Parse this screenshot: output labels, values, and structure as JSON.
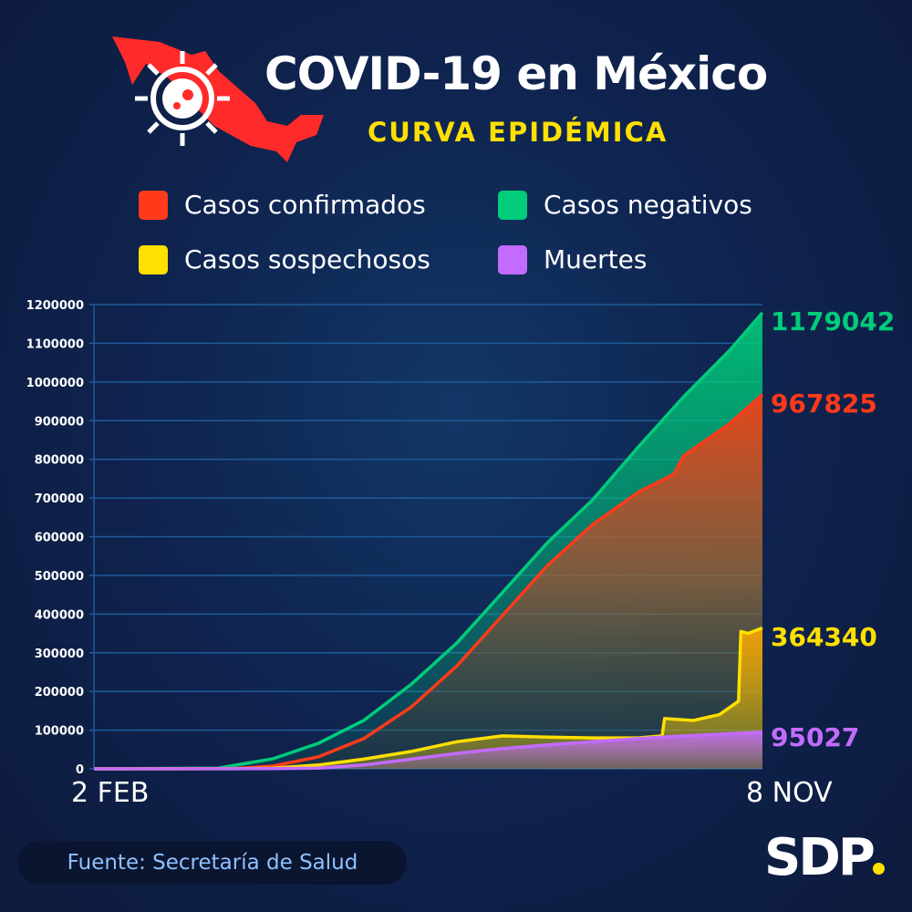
{
  "header": {
    "title": "COVID-19 en México",
    "subtitle": "CURVA EPIDÉMICA",
    "logo_icon": "mexico-map-virus-icon"
  },
  "footer": {
    "source": "Fuente: Secretaría de Salud",
    "brand": "SDP"
  },
  "chart_data": {
    "type": "area",
    "xlabel": "",
    "ylabel": "",
    "x_tick_labels": [
      "2 FEB",
      "8 NOV"
    ],
    "x_range": [
      "02-02",
      "11-08"
    ],
    "ylim": [
      0,
      1200000
    ],
    "y_ticks": [
      0,
      100000,
      200000,
      300000,
      400000,
      500000,
      600000,
      700000,
      800000,
      900000,
      1000000,
      1100000,
      1200000
    ],
    "grid": true,
    "legend_position": "top",
    "series": [
      {
        "name": "Casos negativos",
        "color": "#00cc7a",
        "end_label": "1179042",
        "x": [
          "02-02",
          "03-25",
          "04-17",
          "05-06",
          "05-25",
          "06-14",
          "07-03",
          "07-22",
          "08-10",
          "08-29",
          "09-17",
          "10-06",
          "10-25",
          "11-08"
        ],
        "values": [
          0,
          2000,
          26000,
          66000,
          125000,
          219000,
          325000,
          455000,
          585000,
          696000,
          832000,
          962000,
          1080000,
          1179042
        ]
      },
      {
        "name": "Casos confirmados",
        "color": "#ff3a1a",
        "end_label": "967825",
        "x": [
          "02-02",
          "04-01",
          "04-17",
          "05-06",
          "05-25",
          "06-14",
          "07-03",
          "07-22",
          "08-10",
          "08-29",
          "09-17",
          "10-02",
          "10-06",
          "10-25",
          "11-08"
        ],
        "values": [
          0,
          1000,
          7000,
          31000,
          78000,
          160000,
          266000,
          396000,
          526000,
          632000,
          715000,
          762000,
          809000,
          891000,
          967825
        ]
      },
      {
        "name": "Casos sospechosos",
        "color": "#ffe000",
        "end_label": "364340",
        "x": [
          "02-02",
          "04-05",
          "04-17",
          "05-06",
          "05-25",
          "06-14",
          "07-03",
          "07-22",
          "08-10",
          "08-29",
          "09-17",
          "09-27",
          "09-28",
          "10-10",
          "10-21",
          "10-29",
          "10-30",
          "11-02",
          "11-08"
        ],
        "values": [
          0,
          500,
          2000,
          10000,
          25000,
          45000,
          70000,
          85000,
          82000,
          80000,
          80000,
          85000,
          130000,
          125000,
          140000,
          175000,
          355000,
          350000,
          364340
        ]
      },
      {
        "name": "Muertes",
        "color": "#c36bff",
        "end_label": "95027",
        "x": [
          "02-02",
          "04-17",
          "05-06",
          "05-25",
          "06-14",
          "07-03",
          "07-22",
          "08-10",
          "08-29",
          "09-17",
          "10-06",
          "11-08"
        ],
        "values": [
          0,
          500,
          2000,
          10000,
          25000,
          40000,
          52000,
          62000,
          70000,
          78000,
          85000,
          95027
        ]
      }
    ]
  }
}
